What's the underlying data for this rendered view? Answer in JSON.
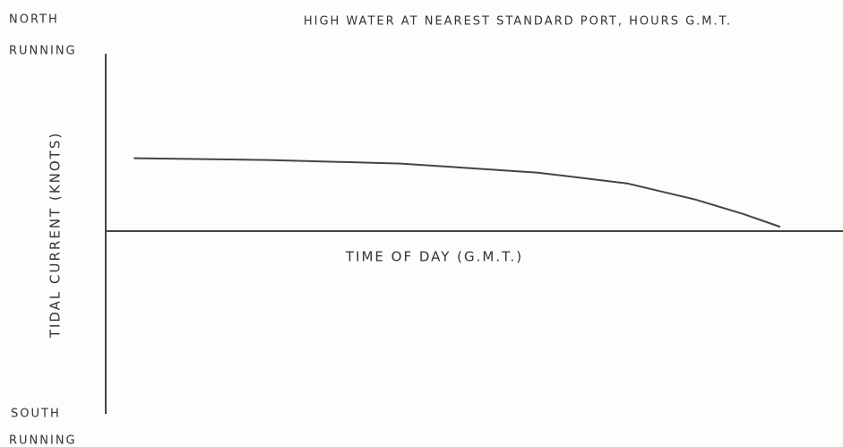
{
  "chart_data": {
    "type": "line",
    "title": "HIGH WATER AT NEAREST STANDARD PORT, HOURS G.M.T.",
    "x_label": "TIME OF DAY (G.M.T.)",
    "y_label": "TIDAL CURRENT (KNOTS)",
    "y_top_label": [
      "NORTH",
      "RUNNING"
    ],
    "y_bottom_label": [
      "SOUTH",
      "RUNNING"
    ],
    "xlim": [
      0,
      1
    ],
    "ylim": [
      -1,
      1
    ],
    "series": [
      {
        "name": "",
        "color": "#444444",
        "x": [
          0.039,
          0.22,
          0.4,
          0.586,
          0.707,
          0.8,
          0.865,
          0.914
        ],
        "values": [
          0.42,
          0.41,
          0.39,
          0.34,
          0.28,
          0.19,
          0.11,
          0.04
        ]
      }
    ]
  }
}
